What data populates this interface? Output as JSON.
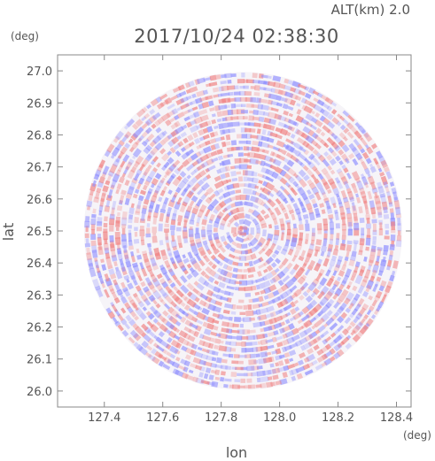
{
  "chart_data": {
    "type": "heatmap",
    "title": "2017/10/24 02:38:30",
    "subtitle": "ALT(km) 2.0",
    "xlabel": "lon",
    "ylabel": "lat",
    "xunit": "(deg)",
    "yunit": "(deg)",
    "xlim": [
      127.24,
      128.45
    ],
    "ylim": [
      25.95,
      27.05
    ],
    "xticks": [
      127.4,
      127.6,
      127.8,
      128.0,
      128.2,
      128.4
    ],
    "xtick_labels": [
      "127.4",
      "127.6",
      "127.8",
      "128.0",
      "128.2",
      "128.4"
    ],
    "yticks": [
      26.0,
      26.1,
      26.2,
      26.3,
      26.4,
      26.5,
      26.6,
      26.7,
      26.8,
      26.9,
      27.0
    ],
    "ytick_labels": [
      "26.0",
      "26.1",
      "26.2",
      "26.3",
      "26.4",
      "26.5",
      "26.6",
      "26.7",
      "26.8",
      "26.9",
      "27.0"
    ],
    "center": [
      127.875,
      26.5
    ],
    "radius_deg": 0.545,
    "colors": {
      "positive": "#f08080",
      "negative": "#8c8cff",
      "frame": "#888888"
    }
  }
}
